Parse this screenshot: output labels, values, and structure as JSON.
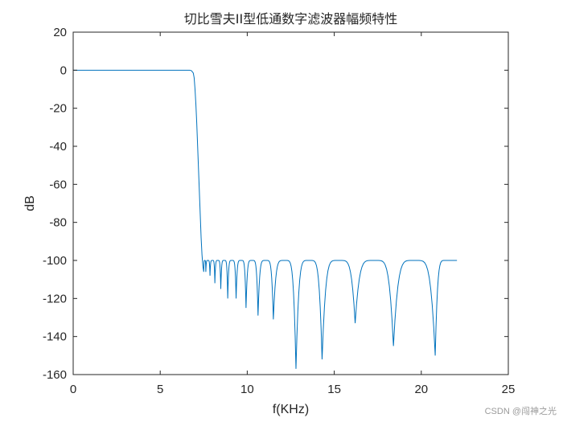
{
  "watermark": "CSDN @闯神之光",
  "chart_data": {
    "type": "line",
    "title": "切比雪夫II型低通数字滤波器幅频特性",
    "xlabel": "f(KHz)",
    "ylabel": "dB",
    "xlim": [
      0,
      25
    ],
    "ylim": [
      -160,
      20
    ],
    "xticks": [
      0,
      5,
      10,
      15,
      20,
      25
    ],
    "yticks": [
      20,
      0,
      -20,
      -40,
      -60,
      -80,
      -100,
      -120,
      -140,
      -160
    ],
    "grid": false,
    "line_color": "#0072BD",
    "series": [
      {
        "name": "",
        "x": [
          0,
          1,
          2,
          3,
          4,
          5,
          6,
          6.5,
          6.7,
          6.8,
          6.9,
          6.95,
          7.0,
          7.05,
          7.1,
          7.15,
          7.2,
          7.25,
          7.3,
          7.35,
          7.4,
          7.45,
          7.5
        ],
        "values": [
          0,
          0,
          0,
          0,
          0,
          0,
          0,
          0,
          0,
          -0.3,
          -1.5,
          -4,
          -10,
          -18,
          -28,
          -40,
          -52,
          -64,
          -76,
          -88,
          -97,
          -103,
          -106
        ]
      }
    ],
    "stopband": {
      "level": -100,
      "end_x": 22.05,
      "nulls": [
        [
          7.62,
          -106
        ],
        [
          7.86,
          -108
        ],
        [
          8.14,
          -112
        ],
        [
          8.48,
          -115
        ],
        [
          8.88,
          -120
        ],
        [
          9.36,
          -120
        ],
        [
          9.93,
          -125
        ],
        [
          10.62,
          -129
        ],
        [
          11.5,
          -131
        ],
        [
          12.8,
          -157
        ],
        [
          14.3,
          -152
        ],
        [
          16.2,
          -133
        ],
        [
          18.4,
          -145
        ],
        [
          20.8,
          -150
        ]
      ]
    }
  }
}
